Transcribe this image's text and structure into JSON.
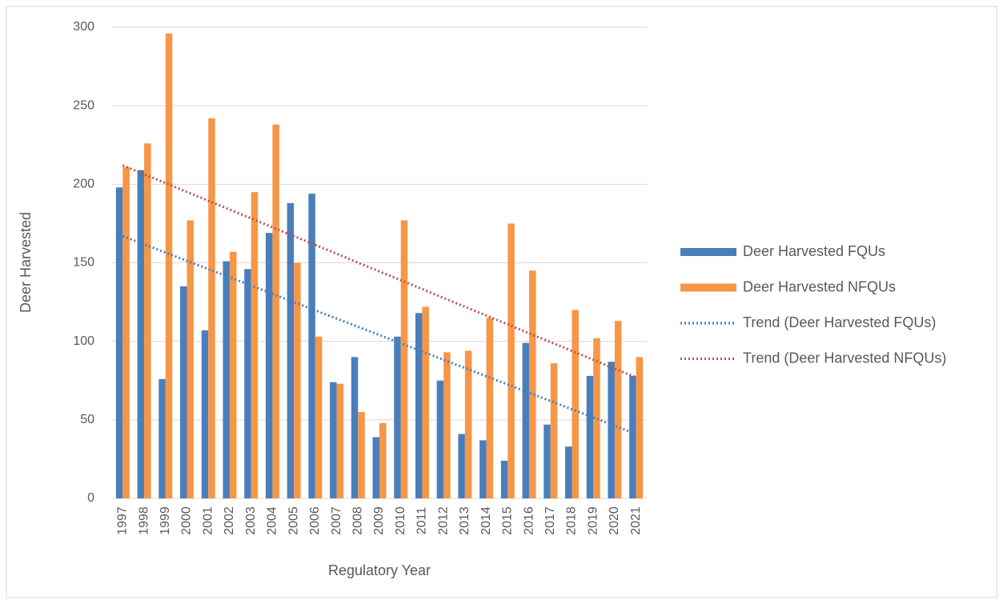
{
  "chart_data": {
    "type": "bar",
    "x_label": "Regulatory Year",
    "y_label": "Deer Harvested",
    "categories": [
      "1997",
      "1998",
      "1999",
      "2000",
      "2001",
      "2002",
      "2003",
      "2004",
      "2005",
      "2006",
      "2007",
      "2008",
      "2009",
      "2010",
      "2011",
      "2012",
      "2013",
      "2014",
      "2015",
      "2016",
      "2017",
      "2018",
      "2019",
      "2020",
      "2021"
    ],
    "series": [
      {
        "name": "Deer Harvested FQUs",
        "color": "#4a7ebb",
        "type": "bar",
        "values": [
          198,
          209,
          76,
          135,
          107,
          151,
          146,
          169,
          188,
          194,
          74,
          90,
          39,
          103,
          118,
          75,
          41,
          37,
          24,
          99,
          47,
          33,
          78,
          87,
          78
        ]
      },
      {
        "name": "Deer Harvested NFQUs",
        "color": "#f79646",
        "type": "bar",
        "values": [
          211,
          226,
          296,
          177,
          242,
          157,
          195,
          238,
          150,
          103,
          73,
          55,
          48,
          177,
          122,
          93,
          94,
          115,
          175,
          145,
          86,
          120,
          102,
          113,
          90
        ]
      },
      {
        "name": "Trend (Deer Harvested FQUs)",
        "color": "#4a7ebb",
        "type": "line",
        "dash": "dotted",
        "values": [
          167,
          161.75,
          156.5,
          151.25,
          146,
          140.75,
          135.5,
          130.25,
          125,
          119.75,
          114.5,
          109.25,
          104,
          98.75,
          93.5,
          88.25,
          83,
          77.75,
          72.5,
          67.25,
          62,
          56.75,
          51.5,
          46.25,
          41
        ]
      },
      {
        "name": "Trend (Deer Harvested NFQUs)",
        "color": "#c0504d",
        "type": "line",
        "dash": "dotted",
        "values": [
          212,
          206.4,
          200.8,
          195.1,
          189.5,
          183.9,
          178.3,
          172.6,
          167,
          161.4,
          155.8,
          150.1,
          144.5,
          138.9,
          133.3,
          127.6,
          122,
          116.4,
          110.8,
          105.1,
          99.5,
          93.9,
          88.3,
          82.6,
          77
        ]
      }
    ],
    "ylim": [
      0,
      300
    ],
    "yticks": [
      0,
      50,
      100,
      150,
      200,
      250,
      300
    ],
    "grid": true,
    "legend": "right"
  }
}
